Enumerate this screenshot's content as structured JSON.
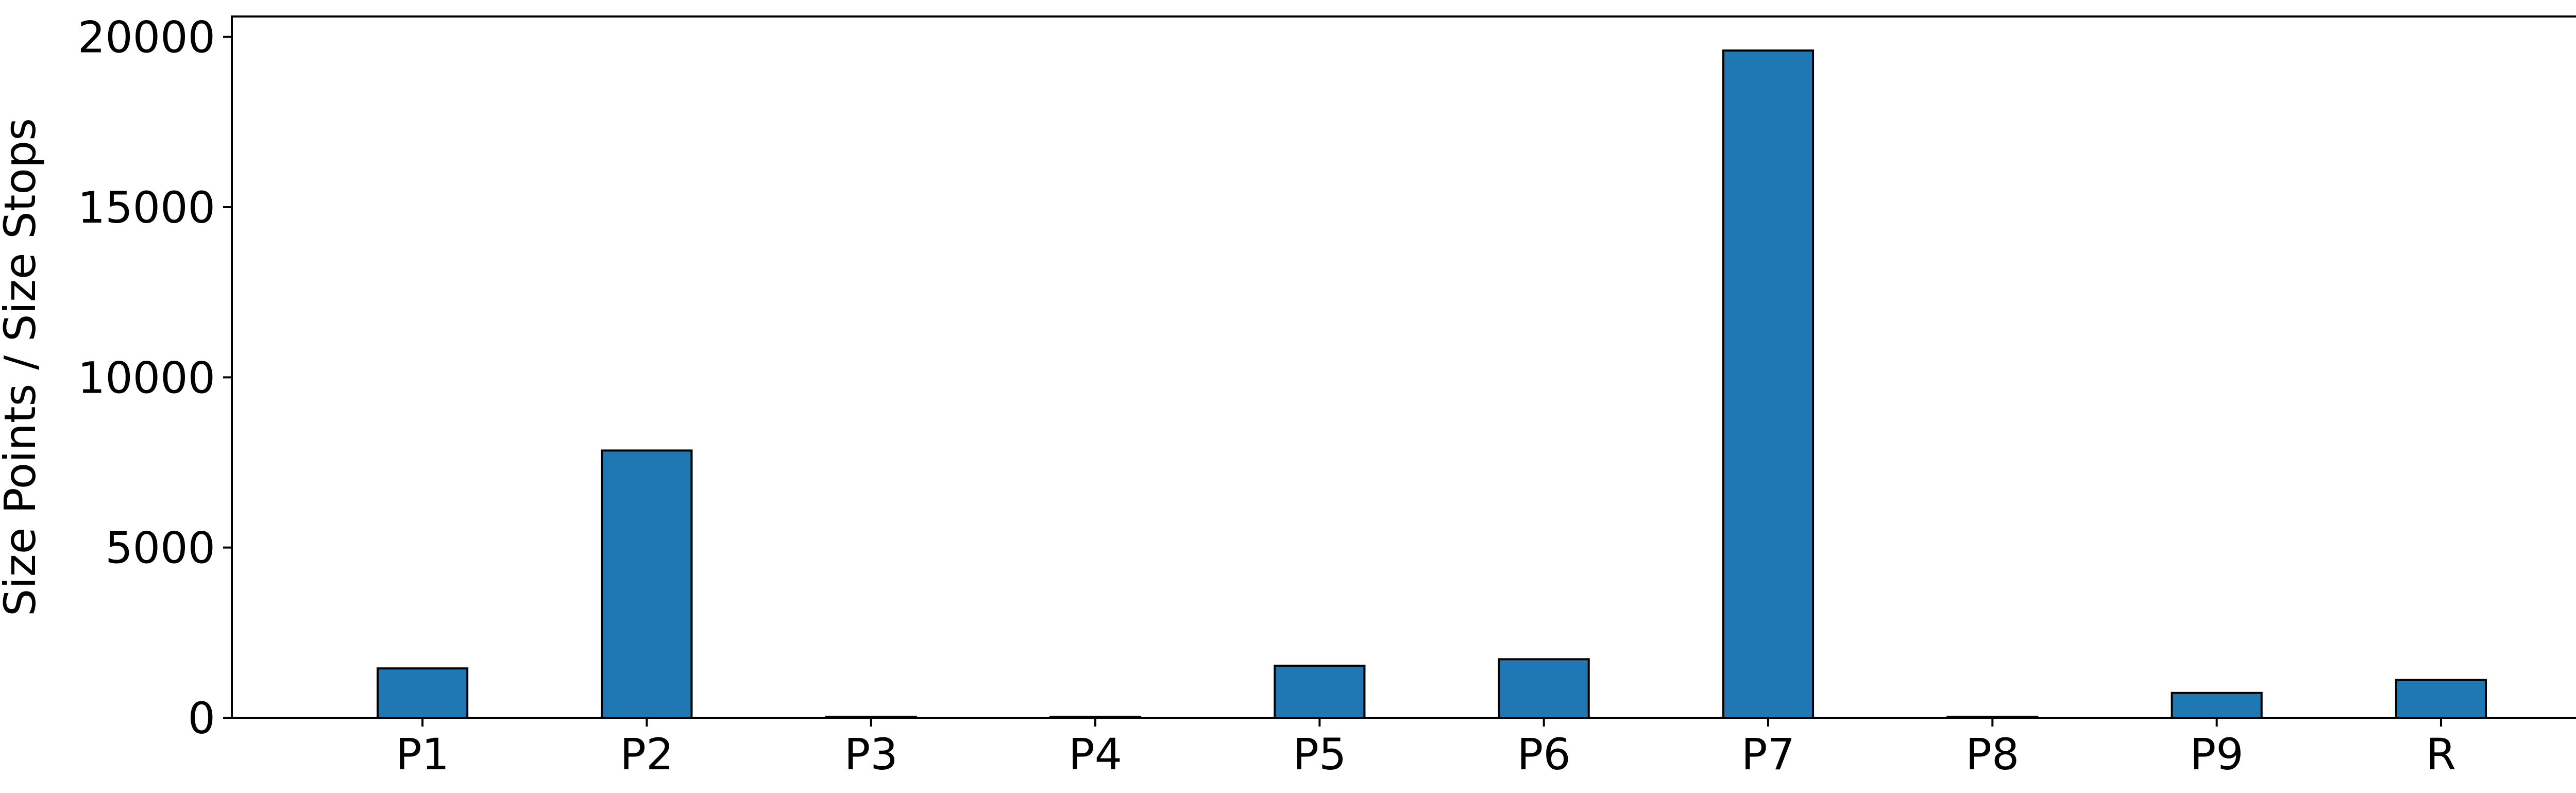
{
  "chart_data": {
    "type": "bar",
    "title": "",
    "xlabel": "",
    "ylabel": "Size Points / Size Stops",
    "categories": [
      "P1",
      "P2",
      "P3",
      "P4",
      "P5",
      "P6",
      "P7",
      "P8",
      "P9",
      "R"
    ],
    "values": [
      1450,
      7850,
      30,
      30,
      1530,
      1720,
      19600,
      30,
      730,
      1110
    ],
    "ylim": [
      0,
      20600
    ],
    "yticks": [
      0,
      5000,
      10000,
      15000,
      20000
    ],
    "ytick_labels": [
      "0",
      "5000",
      "10000",
      "15000",
      "20000"
    ],
    "grid": false,
    "legend": "none",
    "colors": {
      "bar": "#1f77b4",
      "edge": "#000000"
    }
  }
}
